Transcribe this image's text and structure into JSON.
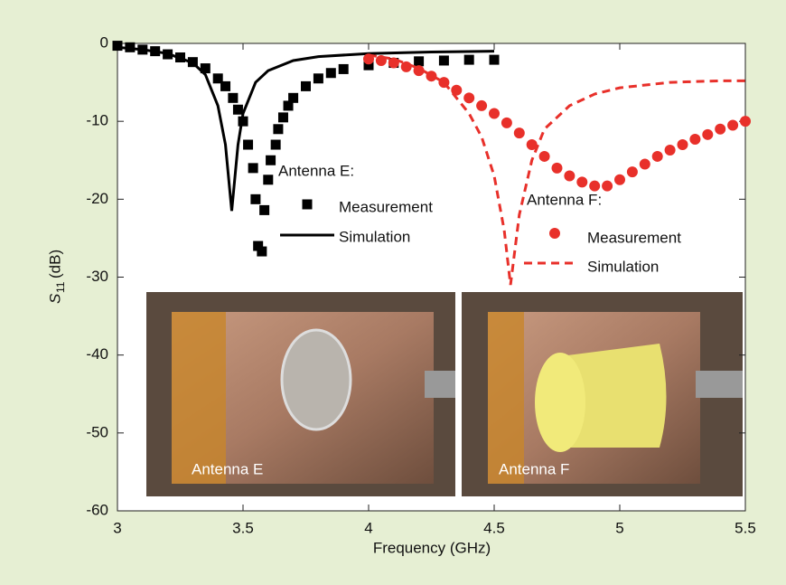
{
  "chart_data": {
    "type": "line",
    "xlabel": "Frequency (GHz)",
    "ylabel_symbol": "S",
    "ylabel_subscript": "11",
    "ylabel_unit": "(dB)",
    "xlim": [
      3,
      5.5
    ],
    "xticks": [
      3,
      3.5,
      4,
      4.5,
      5,
      5.5
    ],
    "ylim": [
      -60,
      0
    ],
    "yticks": [
      0,
      -10,
      -20,
      -30,
      -40,
      -50,
      -60
    ],
    "legend_titles": [
      "Antenna E:",
      "Antenna F:"
    ],
    "insets": [
      "Antenna E",
      "Antenna F"
    ],
    "series": [
      {
        "name": "Measurement",
        "group": 0,
        "style": "square",
        "color": "#000000",
        "x": [
          3.0,
          3.05,
          3.1,
          3.15,
          3.2,
          3.25,
          3.3,
          3.35,
          3.4,
          3.43,
          3.46,
          3.48,
          3.5,
          3.52,
          3.54,
          3.55,
          3.56,
          3.575,
          3.585,
          3.6,
          3.61,
          3.63,
          3.64,
          3.66,
          3.68,
          3.7,
          3.75,
          3.8,
          3.85,
          3.9,
          4.0,
          4.1,
          4.2,
          4.3,
          4.4,
          4.5
        ],
        "values": [
          -0.3,
          -0.5,
          -0.8,
          -1.0,
          -1.4,
          -1.8,
          -2.4,
          -3.2,
          -4.5,
          -5.5,
          -7,
          -8.5,
          -10,
          -13,
          -16,
          -20,
          -26,
          -26.7,
          -21.4,
          -17.5,
          -15,
          -13,
          -11,
          -9.5,
          -8,
          -7,
          -5.5,
          -4.5,
          -3.8,
          -3.3,
          -2.8,
          -2.5,
          -2.3,
          -2.2,
          -2.1,
          -2.1
        ]
      },
      {
        "name": "Simulation",
        "group": 0,
        "style": "solid",
        "color": "#000000",
        "x": [
          3.0,
          3.1,
          3.2,
          3.3,
          3.35,
          3.4,
          3.43,
          3.455,
          3.48,
          3.5,
          3.55,
          3.6,
          3.7,
          3.8,
          4.0,
          4.25,
          4.5
        ],
        "values": [
          -0.5,
          -0.8,
          -1.3,
          -2.5,
          -4,
          -8,
          -13,
          -21.5,
          -13,
          -9,
          -5,
          -3.5,
          -2.2,
          -1.7,
          -1.3,
          -1.1,
          -1.0
        ]
      },
      {
        "name": "Measurement",
        "group": 1,
        "style": "circle",
        "color": "#e8302a",
        "x": [
          4.0,
          4.05,
          4.1,
          4.15,
          4.2,
          4.25,
          4.3,
          4.35,
          4.4,
          4.45,
          4.5,
          4.55,
          4.6,
          4.65,
          4.7,
          4.75,
          4.8,
          4.85,
          4.9,
          4.95,
          5.0,
          5.05,
          5.1,
          5.15,
          5.2,
          5.25,
          5.3,
          5.35,
          5.4,
          5.45,
          5.5
        ],
        "values": [
          -2,
          -2.2,
          -2.5,
          -3,
          -3.5,
          -4.2,
          -5,
          -6,
          -7,
          -8,
          -9,
          -10.2,
          -11.5,
          -13,
          -14.5,
          -16,
          -17,
          -17.8,
          -18.3,
          -18.3,
          -17.5,
          -16.5,
          -15.5,
          -14.5,
          -13.7,
          -13,
          -12.3,
          -11.7,
          -11,
          -10.5,
          -10
        ]
      },
      {
        "name": "Simulation",
        "group": 1,
        "style": "dashed",
        "color": "#e8302a",
        "x": [
          4.0,
          4.1,
          4.2,
          4.3,
          4.4,
          4.45,
          4.5,
          4.54,
          4.565,
          4.6,
          4.65,
          4.7,
          4.8,
          4.9,
          5.0,
          5.2,
          5.4,
          5.5
        ],
        "values": [
          -1.5,
          -2,
          -3.2,
          -5,
          -9,
          -12,
          -17,
          -24,
          -31,
          -22,
          -15,
          -11,
          -8,
          -6.5,
          -5.7,
          -5,
          -4.8,
          -4.8
        ]
      }
    ]
  }
}
